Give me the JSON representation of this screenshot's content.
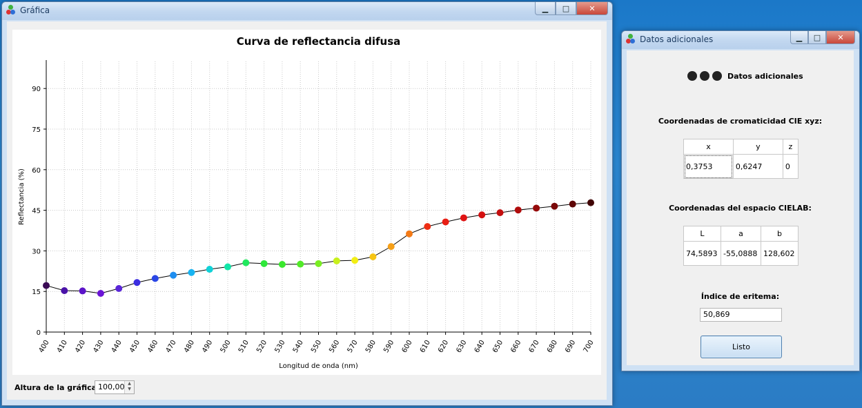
{
  "graph_window": {
    "title": "Gráfica",
    "controls": {
      "minimize": "▁",
      "maximize": "□",
      "close": "✕"
    },
    "height_label": "Altura de la gráfica:",
    "height_value": "100,00"
  },
  "extra_window": {
    "title": "Datos adicionales",
    "header": "Datos adicionales",
    "chroma_title": "Coordenadas de cromaticidad CIE xyz:",
    "chroma_headers": [
      "x",
      "y",
      "z"
    ],
    "chroma_values": [
      "0,3753",
      "0,6247",
      "0"
    ],
    "lab_title": "Coordenadas del espacio CIELAB:",
    "lab_headers": [
      "L",
      "a",
      "b"
    ],
    "lab_values": [
      "74,5893",
      "-55,0888",
      "128,602"
    ],
    "erythema_label": "Índice de eritema:",
    "erythema_value": "50,869",
    "ok_label": "Listo"
  },
  "chart_data": {
    "type": "line",
    "title": "Curva de reflectancia difusa",
    "xlabel": "Longitud de onda (nm)",
    "ylabel": "Reflectancia (%)",
    "xlim": [
      400,
      700
    ],
    "ylim": [
      0,
      100
    ],
    "yticks": [
      0,
      15,
      30,
      45,
      60,
      75,
      90
    ],
    "grid": true,
    "x": [
      400,
      410,
      420,
      430,
      440,
      450,
      460,
      470,
      480,
      490,
      500,
      510,
      520,
      530,
      540,
      550,
      560,
      570,
      580,
      590,
      600,
      610,
      620,
      630,
      640,
      650,
      660,
      670,
      680,
      690,
      700
    ],
    "y": [
      17.2,
      15.3,
      15.2,
      14.3,
      16.1,
      18.3,
      19.8,
      21.0,
      22.0,
      23.2,
      24.1,
      25.6,
      25.3,
      25.0,
      25.1,
      25.3,
      26.3,
      26.5,
      27.8,
      31.6,
      36.3,
      39.0,
      40.7,
      42.2,
      43.3,
      44.1,
      45.1,
      45.8,
      46.5,
      47.3,
      47.8
    ],
    "colors": [
      "#3a0a55",
      "#4a12a8",
      "#5c14c9",
      "#6b14d6",
      "#5a26d8",
      "#3b2ee0",
      "#2a46e6",
      "#1f8ef0",
      "#18b4f2",
      "#10d2d8",
      "#12e6a8",
      "#22e85e",
      "#2ee83a",
      "#3ae82e",
      "#52ea28",
      "#7aee22",
      "#c8f01c",
      "#f2ee14",
      "#f6c414",
      "#f6a018",
      "#f47a16",
      "#ee2e14",
      "#e81e14",
      "#e01414",
      "#d41010",
      "#c40e0e",
      "#b00c0c",
      "#950a0a",
      "#7a0808",
      "#5e0606",
      "#400404"
    ]
  }
}
